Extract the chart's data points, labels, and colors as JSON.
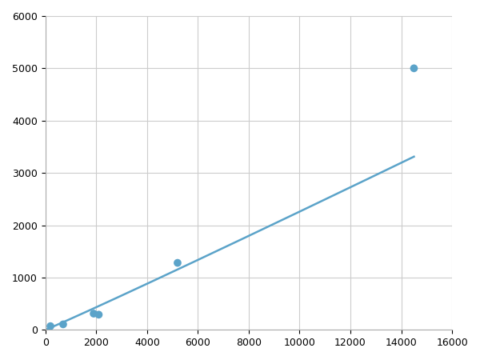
{
  "x_points": [
    200,
    700,
    1900,
    2100,
    5200,
    14500
  ],
  "y_points": [
    70,
    105,
    310,
    290,
    1280,
    5000
  ],
  "line_color": "#5ba3c9",
  "marker_color": "#5ba3c9",
  "marker_size": 7,
  "linewidth": 1.8,
  "xlim": [
    0,
    16000
  ],
  "ylim": [
    0,
    6000
  ],
  "xticks": [
    0,
    2000,
    4000,
    6000,
    8000,
    10000,
    12000,
    14000,
    16000
  ],
  "yticks": [
    0,
    1000,
    2000,
    3000,
    4000,
    5000,
    6000
  ],
  "grid_color": "#cccccc",
  "background_color": "#ffffff",
  "figsize": [
    6.0,
    4.5
  ],
  "dpi": 100
}
